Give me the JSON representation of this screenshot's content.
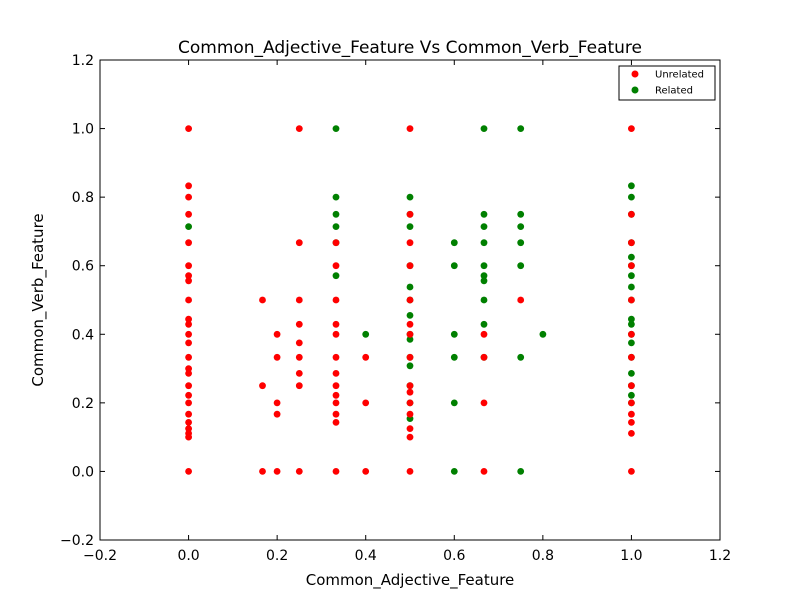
{
  "chart_data": {
    "type": "scatter",
    "title": "Common_Adjective_Feature Vs Common_Verb_Feature",
    "xlabel": "Common_Adjective_Feature",
    "ylabel": "Common_Verb_Feature",
    "xlim": [
      -0.2,
      1.2
    ],
    "ylim": [
      -0.2,
      1.2
    ],
    "xticks": [
      -0.2,
      0.0,
      0.2,
      0.4,
      0.6,
      0.8,
      1.0,
      1.2
    ],
    "yticks": [
      -0.2,
      0.0,
      0.2,
      0.4,
      0.6,
      0.8,
      1.0,
      1.2
    ],
    "tick_labels_x": [
      "−0.2",
      "0.0",
      "0.2",
      "0.4",
      "0.6",
      "0.8",
      "1.0",
      "1.2"
    ],
    "tick_labels_y": [
      "−0.2",
      "0.0",
      "0.2",
      "0.4",
      "0.6",
      "0.8",
      "1.0",
      "1.2"
    ],
    "grid": false,
    "legend_position": "top-right",
    "series": [
      {
        "name": "Related",
        "color": "#008000",
        "points": [
          [
            0,
            0.714
          ],
          [
            0.333,
            1.0
          ],
          [
            0.333,
            0.8
          ],
          [
            0.333,
            0.75
          ],
          [
            0.333,
            0.714
          ],
          [
            0.333,
            0.667
          ],
          [
            0.333,
            0.571
          ],
          [
            0.4,
            0.4
          ],
          [
            0.5,
            0.8
          ],
          [
            0.5,
            0.75
          ],
          [
            0.5,
            0.714
          ],
          [
            0.5,
            0.6
          ],
          [
            0.5,
            0.538
          ],
          [
            0.5,
            0.5
          ],
          [
            0.5,
            0.455
          ],
          [
            0.5,
            0.4
          ],
          [
            0.5,
            0.385
          ],
          [
            0.5,
            0.333
          ],
          [
            0.5,
            0.308
          ],
          [
            0.5,
            0.25
          ],
          [
            0.5,
            0.2
          ],
          [
            0.5,
            0.154
          ],
          [
            0.6,
            0.667
          ],
          [
            0.6,
            0.6
          ],
          [
            0.6,
            0.4
          ],
          [
            0.6,
            0.333
          ],
          [
            0.6,
            0.2
          ],
          [
            0.6,
            0
          ],
          [
            0.667,
            1.0
          ],
          [
            0.667,
            0.75
          ],
          [
            0.667,
            0.714
          ],
          [
            0.667,
            0.667
          ],
          [
            0.667,
            0.6
          ],
          [
            0.667,
            0.571
          ],
          [
            0.667,
            0.556
          ],
          [
            0.667,
            0.5
          ],
          [
            0.667,
            0.429
          ],
          [
            0.667,
            0.333
          ],
          [
            0.75,
            1.0
          ],
          [
            0.75,
            0.75
          ],
          [
            0.75,
            0.714
          ],
          [
            0.75,
            0.667
          ],
          [
            0.75,
            0.6
          ],
          [
            0.75,
            0.333
          ],
          [
            0.75,
            0
          ],
          [
            0.8,
            0.4
          ],
          [
            1.0,
            0.833
          ],
          [
            1.0,
            0.8
          ],
          [
            1.0,
            0.75
          ],
          [
            1.0,
            0.667
          ],
          [
            1.0,
            0.625
          ],
          [
            1.0,
            0.6
          ],
          [
            1.0,
            0.571
          ],
          [
            1.0,
            0.538
          ],
          [
            1.0,
            0.5
          ],
          [
            1.0,
            0.444
          ],
          [
            1.0,
            0.429
          ],
          [
            1.0,
            0.4
          ],
          [
            1.0,
            0.375
          ],
          [
            1.0,
            0.333
          ],
          [
            1.0,
            0.286
          ],
          [
            1.0,
            0.25
          ],
          [
            1.0,
            0.222
          ],
          [
            1.0,
            0.2
          ]
        ]
      },
      {
        "name": "Unrelated",
        "color": "#ff0000",
        "points": [
          [
            0,
            1.0
          ],
          [
            0,
            0.833
          ],
          [
            0,
            0.8
          ],
          [
            0,
            0.75
          ],
          [
            0,
            0.667
          ],
          [
            0,
            0.6
          ],
          [
            0,
            0.571
          ],
          [
            0,
            0.556
          ],
          [
            0,
            0.5
          ],
          [
            0,
            0.444
          ],
          [
            0,
            0.429
          ],
          [
            0,
            0.4
          ],
          [
            0,
            0.375
          ],
          [
            0,
            0.333
          ],
          [
            0,
            0.3
          ],
          [
            0,
            0.286
          ],
          [
            0,
            0.25
          ],
          [
            0,
            0.222
          ],
          [
            0,
            0.2
          ],
          [
            0,
            0.167
          ],
          [
            0,
            0.143
          ],
          [
            0,
            0.125
          ],
          [
            0,
            0.111
          ],
          [
            0,
            0.1
          ],
          [
            0,
            0
          ],
          [
            0.167,
            0.5
          ],
          [
            0.167,
            0.25
          ],
          [
            0.167,
            0
          ],
          [
            0.2,
            0.4
          ],
          [
            0.2,
            0.333
          ],
          [
            0.2,
            0.2
          ],
          [
            0.2,
            0.167
          ],
          [
            0.2,
            0
          ],
          [
            0.25,
            1.0
          ],
          [
            0.25,
            0.667
          ],
          [
            0.25,
            0.5
          ],
          [
            0.25,
            0.429
          ],
          [
            0.25,
            0.375
          ],
          [
            0.25,
            0.333
          ],
          [
            0.25,
            0.286
          ],
          [
            0.25,
            0.25
          ],
          [
            0.25,
            0
          ],
          [
            0.333,
            0.667
          ],
          [
            0.333,
            0.6
          ],
          [
            0.333,
            0.5
          ],
          [
            0.333,
            0.429
          ],
          [
            0.333,
            0.4
          ],
          [
            0.333,
            0.333
          ],
          [
            0.333,
            0.286
          ],
          [
            0.333,
            0.25
          ],
          [
            0.333,
            0.222
          ],
          [
            0.333,
            0.2
          ],
          [
            0.333,
            0.167
          ],
          [
            0.333,
            0.143
          ],
          [
            0.333,
            0
          ],
          [
            0.4,
            0.333
          ],
          [
            0.4,
            0.2
          ],
          [
            0.4,
            0
          ],
          [
            0.5,
            1.0
          ],
          [
            0.5,
            0.75
          ],
          [
            0.5,
            0.667
          ],
          [
            0.5,
            0.6
          ],
          [
            0.5,
            0.5
          ],
          [
            0.5,
            0.429
          ],
          [
            0.5,
            0.4
          ],
          [
            0.5,
            0.333
          ],
          [
            0.5,
            0.25
          ],
          [
            0.5,
            0.231
          ],
          [
            0.5,
            0.2
          ],
          [
            0.5,
            0.167
          ],
          [
            0.5,
            0.125
          ],
          [
            0.5,
            0.1
          ],
          [
            0.5,
            0
          ],
          [
            0.667,
            0.4
          ],
          [
            0.667,
            0.333
          ],
          [
            0.667,
            0.2
          ],
          [
            0.667,
            0
          ],
          [
            0.75,
            0.5
          ],
          [
            1.0,
            1.0
          ],
          [
            1.0,
            0.75
          ],
          [
            1.0,
            0.667
          ],
          [
            1.0,
            0.6
          ],
          [
            1.0,
            0.5
          ],
          [
            1.0,
            0.4
          ],
          [
            1.0,
            0.333
          ],
          [
            1.0,
            0.25
          ],
          [
            1.0,
            0.2
          ],
          [
            1.0,
            0.167
          ],
          [
            1.0,
            0.143
          ],
          [
            1.0,
            0.111
          ],
          [
            1.0,
            0
          ]
        ]
      }
    ],
    "legend": [
      {
        "label": "Unrelated",
        "color": "#ff0000"
      },
      {
        "label": "Related",
        "color": "#008000"
      }
    ]
  }
}
